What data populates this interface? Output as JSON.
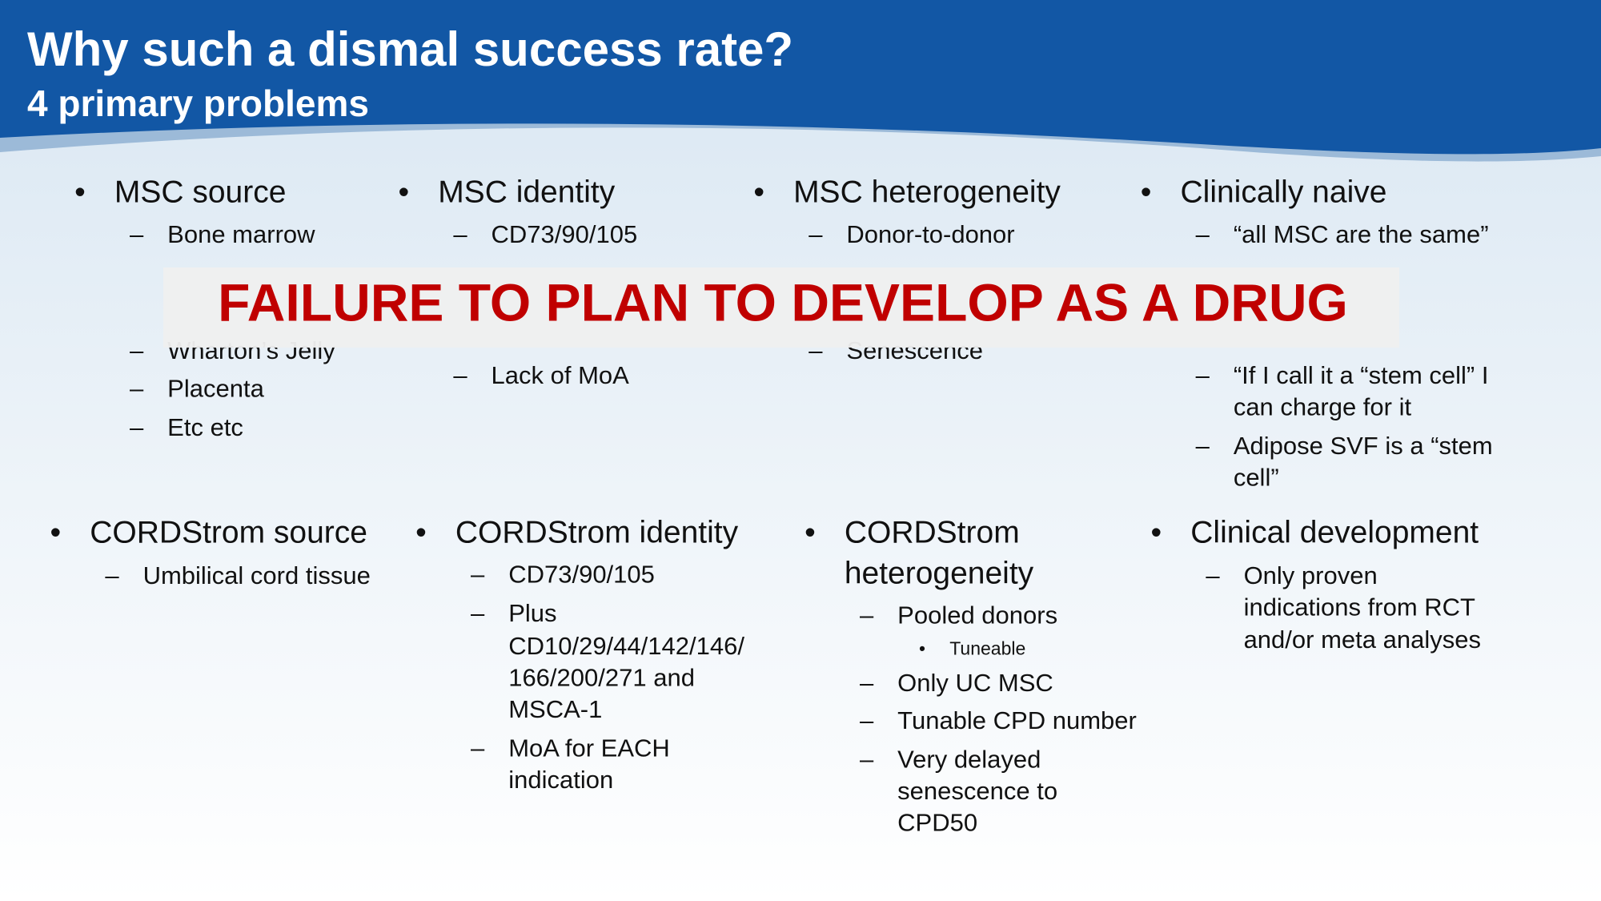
{
  "header": {
    "title": "Why such a dismal success rate?",
    "subtitle": "4 primary problems"
  },
  "banner": "FAILURE TO PLAN TO DEVELOP AS A DRUG",
  "top_row": [
    {
      "heading": [
        "MSC source"
      ],
      "items": [
        {
          "lines": [
            "Bone marrow"
          ]
        },
        {
          "lines": [
            "Wharton’s Jelly"
          ]
        },
        {
          "lines": [
            "Placenta"
          ]
        },
        {
          "lines": [
            "Etc etc"
          ]
        }
      ]
    },
    {
      "heading": [
        "MSC identity"
      ],
      "items": [
        {
          "lines": [
            "CD73/90/105"
          ]
        },
        {
          "lines": [
            "Lack of MoA"
          ]
        }
      ]
    },
    {
      "heading": [
        "MSC heterogeneity"
      ],
      "items": [
        {
          "lines": [
            "Donor-to-donor"
          ]
        },
        {
          "lines": [
            "Senescence"
          ]
        }
      ]
    },
    {
      "heading": [
        "Clinically naive"
      ],
      "items": [
        {
          "lines": [
            "“all MSC are the same”"
          ]
        },
        {
          "lines": [
            "“If I call it a “stem cell” I",
            "can charge for it"
          ]
        },
        {
          "lines": [
            "Adipose SVF is a “stem",
            "cell”"
          ]
        }
      ]
    }
  ],
  "bottom_row": [
    {
      "heading": [
        "CORDStrom source"
      ],
      "items": [
        {
          "lines": [
            "Umbilical cord tissue"
          ]
        }
      ]
    },
    {
      "heading": [
        "CORDStrom identity"
      ],
      "items": [
        {
          "lines": [
            "CD73/90/105"
          ]
        },
        {
          "lines": [
            "Plus",
            "CD10/29/44/142/146/",
            "166/200/271 and",
            "MSCA-1"
          ]
        },
        {
          "lines": [
            "MoA for EACH",
            "indication"
          ]
        }
      ]
    },
    {
      "heading": [
        "CORDStrom",
        "heterogeneity"
      ],
      "items": [
        {
          "lines": [
            "Pooled donors"
          ],
          "sub": [
            "Tuneable"
          ]
        },
        {
          "lines": [
            "Only UC MSC"
          ]
        },
        {
          "lines": [
            "Tunable CPD number"
          ]
        },
        {
          "lines": [
            "Very delayed",
            "senescence to",
            "CPD50"
          ]
        }
      ]
    },
    {
      "heading": [
        "Clinical development"
      ],
      "items": [
        {
          "lines": [
            "Only proven",
            "indications from RCT",
            "and/or meta analyses"
          ]
        }
      ]
    }
  ]
}
